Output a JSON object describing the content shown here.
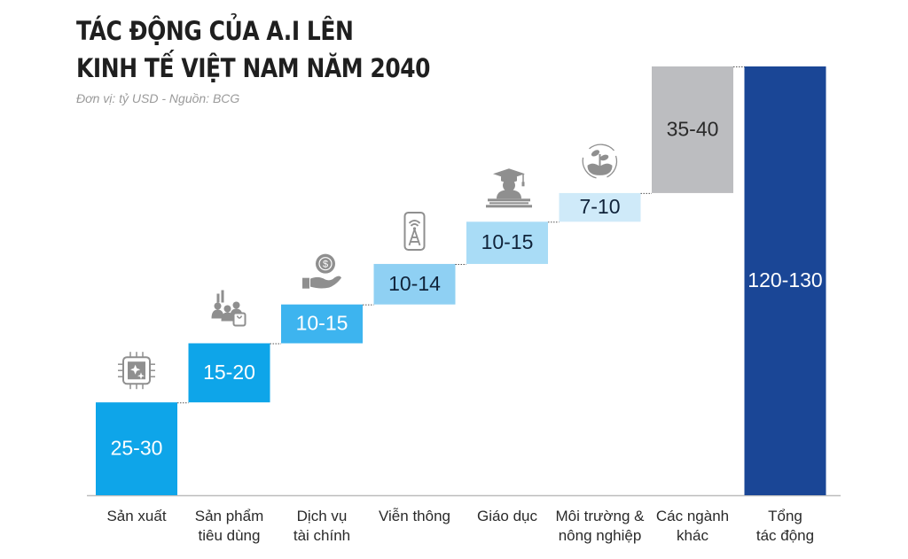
{
  "header": {
    "title_line1": "TÁC ĐỘNG CỦA A.I LÊN",
    "title_line2": "KINH TẾ VIỆT NAM NĂM 2040",
    "subtitle": "Đơn vị: tỷ USD  -  Nguồn: BCG"
  },
  "chart_data": {
    "type": "bar",
    "subtype": "waterfall",
    "title": "TÁC ĐỘNG CỦA A.I LÊN KINH TẾ VIỆT NAM NĂM 2040",
    "subtitle": "Đơn vị: tỷ USD - Nguồn: BCG",
    "xlabel": "",
    "ylabel": "tỷ USD",
    "unit": "tỷ USD",
    "categories": [
      [
        "Sản xuất"
      ],
      [
        "Sản phẩm",
        "tiêu dùng"
      ],
      [
        "Dịch vụ",
        "tài chính"
      ],
      [
        "Viễn thông"
      ],
      [
        "Giáo dục"
      ],
      [
        "Môi trường &",
        "nông nghiệp"
      ],
      [
        "Các ngành",
        "khác"
      ],
      [
        "Tổng",
        "tác động"
      ]
    ],
    "labels": [
      "25-30",
      "15-20",
      "10-15",
      "10-14",
      "10-15",
      "7-10",
      "35-40",
      "120-130"
    ],
    "ranges": [
      [
        25,
        30
      ],
      [
        15,
        20
      ],
      [
        10,
        15
      ],
      [
        10,
        14
      ],
      [
        10,
        15
      ],
      [
        7,
        10
      ],
      [
        35,
        40
      ],
      [
        120,
        130
      ]
    ],
    "cumulative_start": [
      0,
      27.5,
      45,
      56.5,
      68.5,
      81,
      89.5,
      0
    ],
    "cumulative_end": [
      27.5,
      45,
      56.5,
      68.5,
      81,
      89.5,
      127,
      127
    ],
    "is_total": [
      false,
      false,
      false,
      false,
      false,
      false,
      false,
      true
    ],
    "icons": [
      "ai-chip-icon",
      "consumer-shopping-icon",
      "finance-hand-coin-icon",
      "telecom-phone-tower-icon",
      "education-graduate-icon",
      "environment-plant-cycle-icon",
      null,
      null
    ],
    "colors": [
      "#0ea5e9",
      "#0ea5e9",
      "#3db4ef",
      "#8fd0f3",
      "#a9dcf6",
      "#cfeaf9",
      "#bcbdc0",
      "#1a4696"
    ],
    "label_colors": [
      "#ffffff",
      "#ffffff",
      "#ffffff",
      "#10233a",
      "#10233a",
      "#10233a",
      "#2a2a2a",
      "#ffffff"
    ],
    "ylim": [
      0,
      130
    ],
    "grid": false,
    "legend": "none"
  }
}
